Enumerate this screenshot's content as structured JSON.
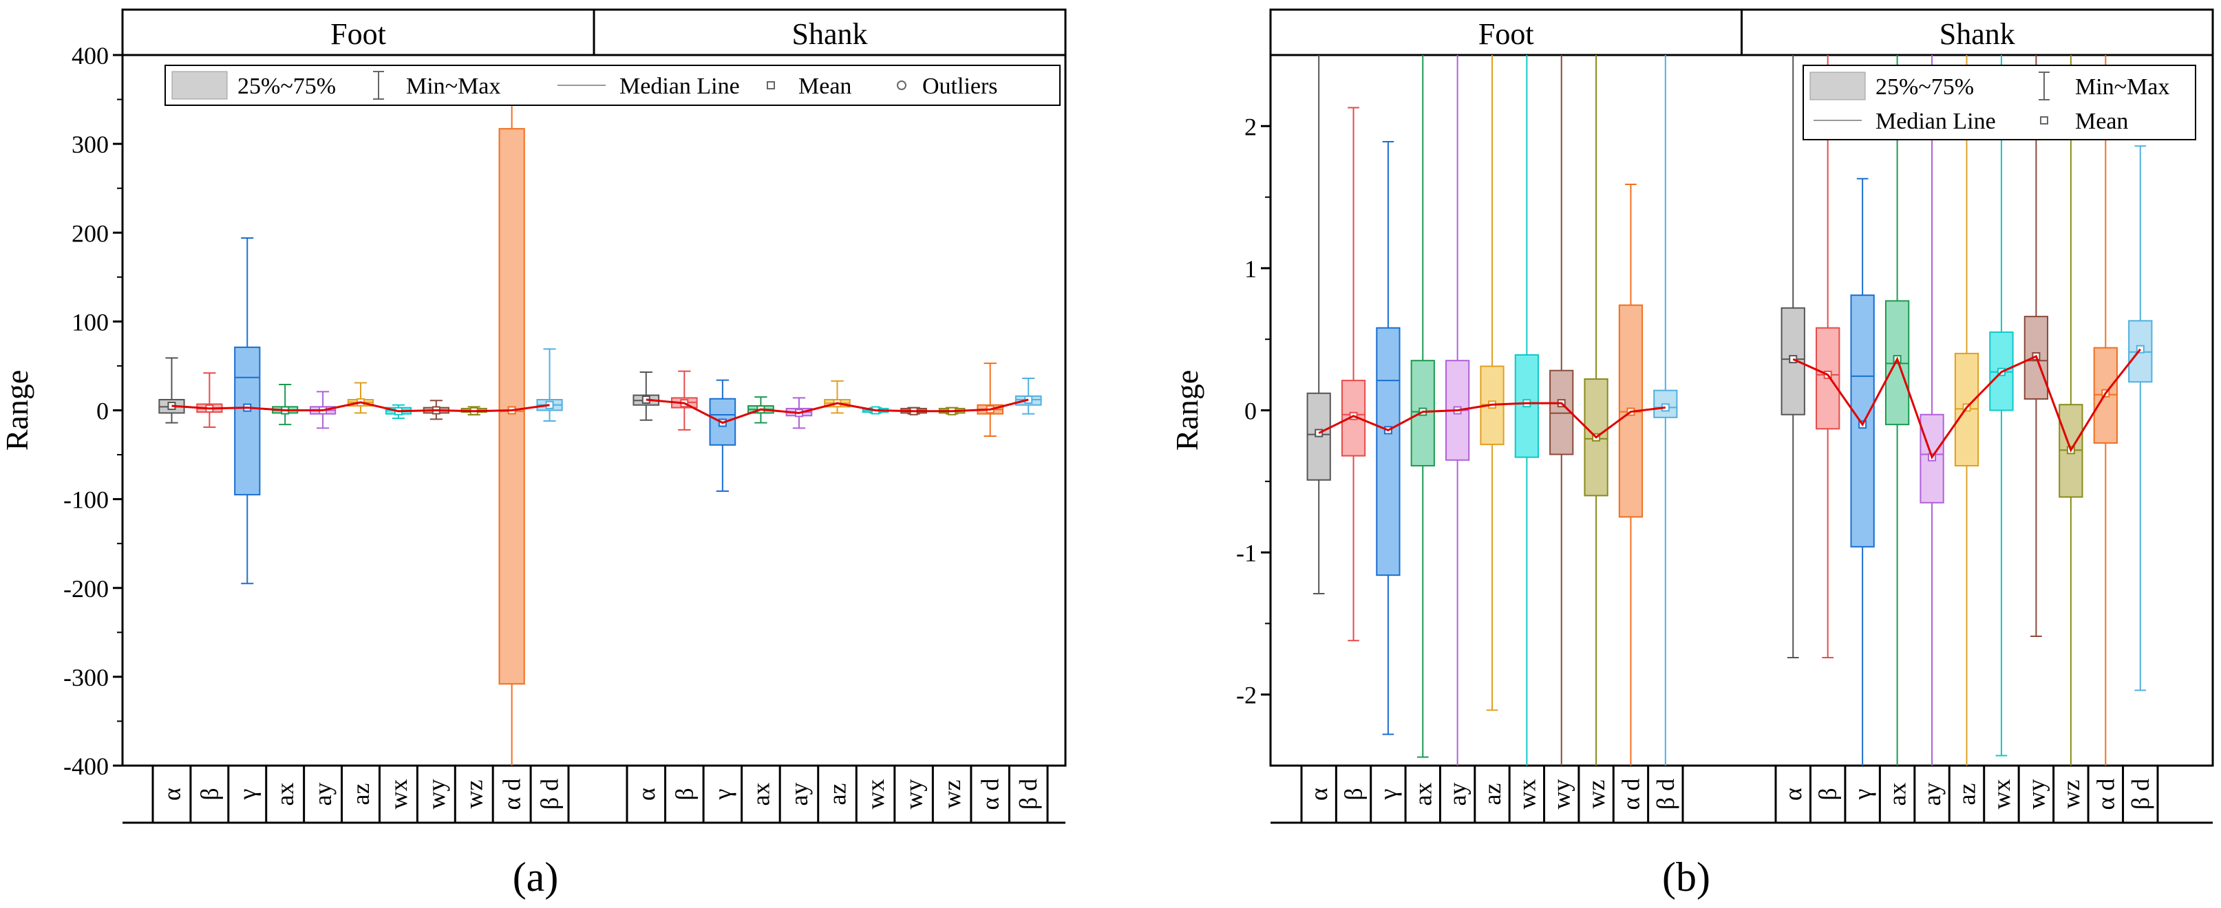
{
  "panel_labels": [
    "(a)",
    "(b)"
  ],
  "chart_data": [
    {
      "type": "box",
      "panel": "(a)",
      "ylabel": "Range",
      "ylim": [
        -400,
        400
      ],
      "yticks": [
        -400,
        -300,
        -200,
        -100,
        0,
        100,
        200,
        300,
        400
      ],
      "groups": [
        "Foot",
        "Shank"
      ],
      "categories": [
        "α",
        "β",
        "γ",
        "ax",
        "ay",
        "az",
        "wx",
        "wy",
        "wz",
        "α d",
        "β d"
      ],
      "legend": [
        "25%~75%",
        "Min~Max",
        "Median Line",
        "Mean",
        "Outliers"
      ],
      "series": [
        {
          "name": "Foot",
          "boxes": [
            {
              "q1": -3,
              "q3": 12,
              "median": 4,
              "mean": 5,
              "min": -14,
              "max": 59
            },
            {
              "q1": -2,
              "q3": 7,
              "median": 2,
              "mean": 2,
              "min": -19,
              "max": 42
            },
            {
              "q1": -95,
              "q3": 71,
              "median": 37,
              "mean": 3,
              "min": -195,
              "max": 194
            },
            {
              "q1": -3,
              "q3": 4,
              "median": 0,
              "mean": 0,
              "min": -16,
              "max": 29
            },
            {
              "q1": -4,
              "q3": 4,
              "median": 0,
              "mean": 0,
              "min": -20,
              "max": 21
            },
            {
              "q1": 5,
              "q3": 12,
              "median": 9,
              "mean": 9,
              "min": -3,
              "max": 31
            },
            {
              "q1": -4,
              "q3": 3,
              "median": 0,
              "mean": -1,
              "min": -9,
              "max": 6
            },
            {
              "q1": -3,
              "q3": 3,
              "median": 0,
              "mean": 0,
              "min": -10,
              "max": 11
            },
            {
              "q1": -2,
              "q3": 2,
              "median": 0,
              "mean": -1,
              "min": -5,
              "max": 4
            },
            {
              "q1": -308,
              "q3": 317,
              "median": -1,
              "mean": 0,
              "min": -400,
              "max": 345
            },
            {
              "q1": 0,
              "q3": 12,
              "median": 6,
              "mean": 6,
              "min": -12,
              "max": 69
            }
          ]
        },
        {
          "name": "Shank",
          "boxes": [
            {
              "q1": 6,
              "q3": 17,
              "median": 11,
              "mean": 12,
              "min": -11,
              "max": 43
            },
            {
              "q1": 3,
              "q3": 14,
              "median": 9,
              "mean": 8,
              "min": -22,
              "max": 44
            },
            {
              "q1": -39,
              "q3": 13,
              "median": -5,
              "mean": -14,
              "min": -91,
              "max": 34
            },
            {
              "q1": -3,
              "q3": 5,
              "median": 1,
              "mean": 1,
              "min": -14,
              "max": 15
            },
            {
              "q1": -6,
              "q3": 2,
              "median": -2,
              "mean": -3,
              "min": -20,
              "max": 14
            },
            {
              "q1": 4,
              "q3": 12,
              "median": 8,
              "mean": 8,
              "min": -3,
              "max": 33
            },
            {
              "q1": -2,
              "q3": 2,
              "median": 0,
              "mean": 0,
              "min": -3,
              "max": 3
            },
            {
              "q1": -3,
              "q3": 2,
              "median": 0,
              "mean": -1,
              "min": -4,
              "max": 3
            },
            {
              "q1": -3,
              "q3": 2,
              "median": 0,
              "mean": -1,
              "min": -4,
              "max": 3
            },
            {
              "q1": -4,
              "q3": 6,
              "median": 1,
              "mean": 1,
              "min": -29,
              "max": 53
            },
            {
              "q1": 6,
              "q3": 16,
              "median": 12,
              "mean": 12,
              "min": -4,
              "max": 36
            }
          ]
        }
      ]
    },
    {
      "type": "box",
      "panel": "(b)",
      "ylabel": "Range",
      "ylim": [
        -2.5,
        2.5
      ],
      "yticks": [
        -2,
        -1,
        0,
        1,
        2
      ],
      "groups": [
        "Foot",
        "Shank"
      ],
      "categories": [
        "α",
        "β",
        "γ",
        "ax",
        "ay",
        "az",
        "wx",
        "wy",
        "wz",
        "α d",
        "β d"
      ],
      "legend": [
        "25%~75%",
        "Min~Max",
        "Median Line",
        "Mean"
      ],
      "series": [
        {
          "name": "Foot",
          "boxes": [
            {
              "q1": -0.49,
              "q3": 0.12,
              "median": -0.17,
              "mean": -0.16,
              "min": -1.29,
              "max": 2.5
            },
            {
              "q1": -0.32,
              "q3": 0.21,
              "median": -0.03,
              "mean": -0.04,
              "min": -1.62,
              "max": 2.13
            },
            {
              "q1": -1.16,
              "q3": 0.58,
              "median": 0.21,
              "mean": -0.14,
              "min": -2.28,
              "max": 1.89
            },
            {
              "q1": -0.39,
              "q3": 0.35,
              "median": -0.01,
              "mean": -0.01,
              "min": -2.44,
              "max": 2.5
            },
            {
              "q1": -0.35,
              "q3": 0.35,
              "median": 0.0,
              "mean": 0.0,
              "min": -2.5,
              "max": 2.5
            },
            {
              "q1": -0.24,
              "q3": 0.31,
              "median": 0.04,
              "mean": 0.04,
              "min": -2.11,
              "max": 2.5
            },
            {
              "q1": -0.33,
              "q3": 0.39,
              "median": 0.05,
              "mean": 0.05,
              "min": -2.5,
              "max": 2.5
            },
            {
              "q1": -0.31,
              "q3": 0.28,
              "median": -0.02,
              "mean": 0.05,
              "min": -2.5,
              "max": 2.5
            },
            {
              "q1": -0.6,
              "q3": 0.22,
              "median": -0.2,
              "mean": -0.19,
              "min": -2.5,
              "max": 2.5
            },
            {
              "q1": -0.75,
              "q3": 0.74,
              "median": -0.01,
              "mean": -0.01,
              "min": -2.5,
              "max": 1.59
            },
            {
              "q1": -0.05,
              "q3": 0.14,
              "median": 0.02,
              "mean": 0.02,
              "min": -2.5,
              "max": 2.5
            }
          ]
        },
        {
          "name": "Shank",
          "boxes": [
            {
              "q1": -0.03,
              "q3": 0.72,
              "median": 0.36,
              "mean": 0.36,
              "min": -1.74,
              "max": 2.5
            },
            {
              "q1": -0.13,
              "q3": 0.58,
              "median": 0.25,
              "mean": 0.25,
              "min": -1.74,
              "max": 2.5
            },
            {
              "q1": -0.96,
              "q3": 0.81,
              "median": 0.24,
              "mean": -0.1,
              "min": -2.5,
              "max": 1.63
            },
            {
              "q1": -0.1,
              "q3": 0.77,
              "median": 0.33,
              "mean": 0.36,
              "min": -2.5,
              "max": 2.5
            },
            {
              "q1": -0.65,
              "q3": -0.03,
              "median": -0.31,
              "mean": -0.33,
              "min": -2.5,
              "max": 2.5
            },
            {
              "q1": -0.39,
              "q3": 0.4,
              "median": 0.01,
              "mean": 0.02,
              "min": -2.5,
              "max": 2.5
            },
            {
              "q1": 0.0,
              "q3": 0.55,
              "median": 0.27,
              "mean": 0.27,
              "min": -2.43,
              "max": 2.5
            },
            {
              "q1": 0.08,
              "q3": 0.66,
              "median": 0.35,
              "mean": 0.38,
              "min": -1.59,
              "max": 2.5
            },
            {
              "q1": -0.61,
              "q3": 0.04,
              "median": -0.28,
              "mean": -0.28,
              "min": -2.5,
              "max": 2.5
            },
            {
              "q1": -0.23,
              "q3": 0.44,
              "median": 0.11,
              "mean": 0.12,
              "min": -2.5,
              "max": 2.5
            },
            {
              "q1": 0.2,
              "q3": 0.63,
              "median": 0.41,
              "mean": 0.43,
              "min": -1.97,
              "max": 1.86
            }
          ]
        }
      ]
    }
  ],
  "colors": {
    "fills": [
      "#bdbdbd",
      "#f7a0a0",
      "#74b4ef",
      "#7ed6ae",
      "#e0b4f0",
      "#f6d278",
      "#4ee8e8",
      "#c8a096",
      "#c6c07a",
      "#f8a878",
      "#a8d8f0"
    ],
    "strokes": [
      "#555555",
      "#e84a4a",
      "#1a6fd0",
      "#1a9a50",
      "#b060d8",
      "#e0a020",
      "#10c8c8",
      "#8a4a3a",
      "#8a8a1a",
      "#f07020",
      "#50b0e0"
    ],
    "mean_line": "#e00000",
    "legend_box_fill": "#d0d0d0"
  }
}
